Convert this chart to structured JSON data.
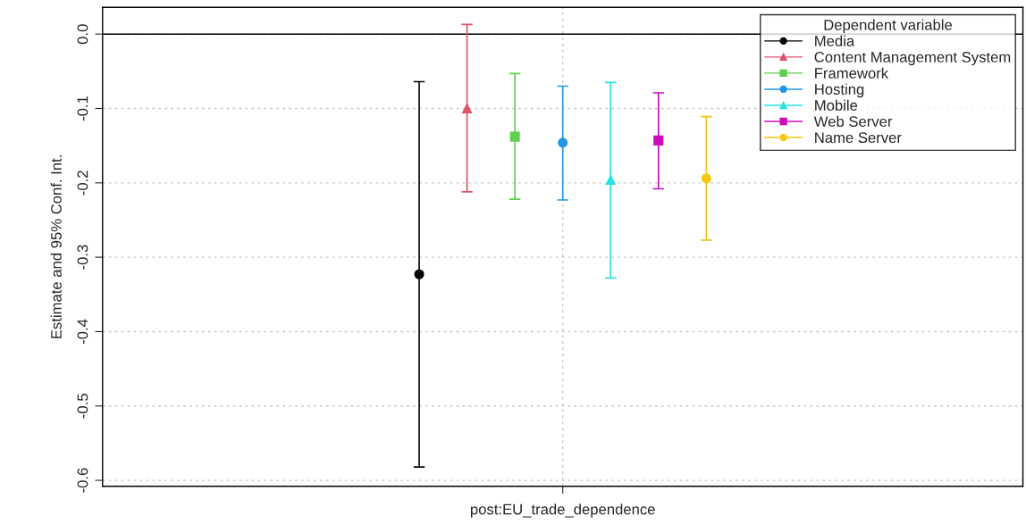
{
  "chart_data": {
    "type": "scatter",
    "ylabel": "Estimate and 95% Conf. Int.",
    "legend_title": "Dependent variable",
    "legend": "top right",
    "grid": true,
    "categories": [
      "post:EU_trade_dependence"
    ],
    "ylim": [
      -0.608,
      0.036
    ],
    "yticks": [
      {
        "value": 0,
        "label": "0.0"
      },
      {
        "value": -0.1,
        "label": "-0.1"
      },
      {
        "value": -0.2,
        "label": "-0.2"
      },
      {
        "value": -0.3,
        "label": "-0.3"
      },
      {
        "value": -0.4,
        "label": "-0.4"
      },
      {
        "value": -0.5,
        "label": "-0.5"
      },
      {
        "value": -0.6,
        "label": "-0.6"
      }
    ],
    "ref_lines": [
      {
        "axis": "y",
        "value": 0,
        "color": "#000000"
      }
    ],
    "series": [
      {
        "name": "Media",
        "color": "#000000",
        "marker": "circle",
        "values": [
          -0.323
        ],
        "errors": [
          [
            -0.582,
            -0.064
          ]
        ]
      },
      {
        "name": "Content Management System",
        "color": "#df536b",
        "marker": "triangle",
        "values": [
          -0.1
        ],
        "errors": [
          [
            -0.212,
            0.013
          ]
        ]
      },
      {
        "name": "Framework",
        "color": "#61d04f",
        "marker": "square",
        "values": [
          -0.138
        ],
        "errors": [
          [
            -0.222,
            -0.053
          ]
        ]
      },
      {
        "name": "Hosting",
        "color": "#2297e6",
        "marker": "circle",
        "values": [
          -0.146
        ],
        "errors": [
          [
            -0.223,
            -0.07
          ]
        ]
      },
      {
        "name": "Mobile",
        "color": "#28e2e5",
        "marker": "triangle",
        "values": [
          -0.196
        ],
        "errors": [
          [
            -0.328,
            -0.065
          ]
        ]
      },
      {
        "name": "Web Server",
        "color": "#cd0bbc",
        "marker": "square",
        "values": [
          -0.143
        ],
        "errors": [
          [
            -0.208,
            -0.079
          ]
        ]
      },
      {
        "name": "Name Server",
        "color": "#f5c710",
        "marker": "circle",
        "values": [
          -0.194
        ],
        "errors": [
          [
            -0.277,
            -0.111
          ]
        ]
      }
    ]
  }
}
